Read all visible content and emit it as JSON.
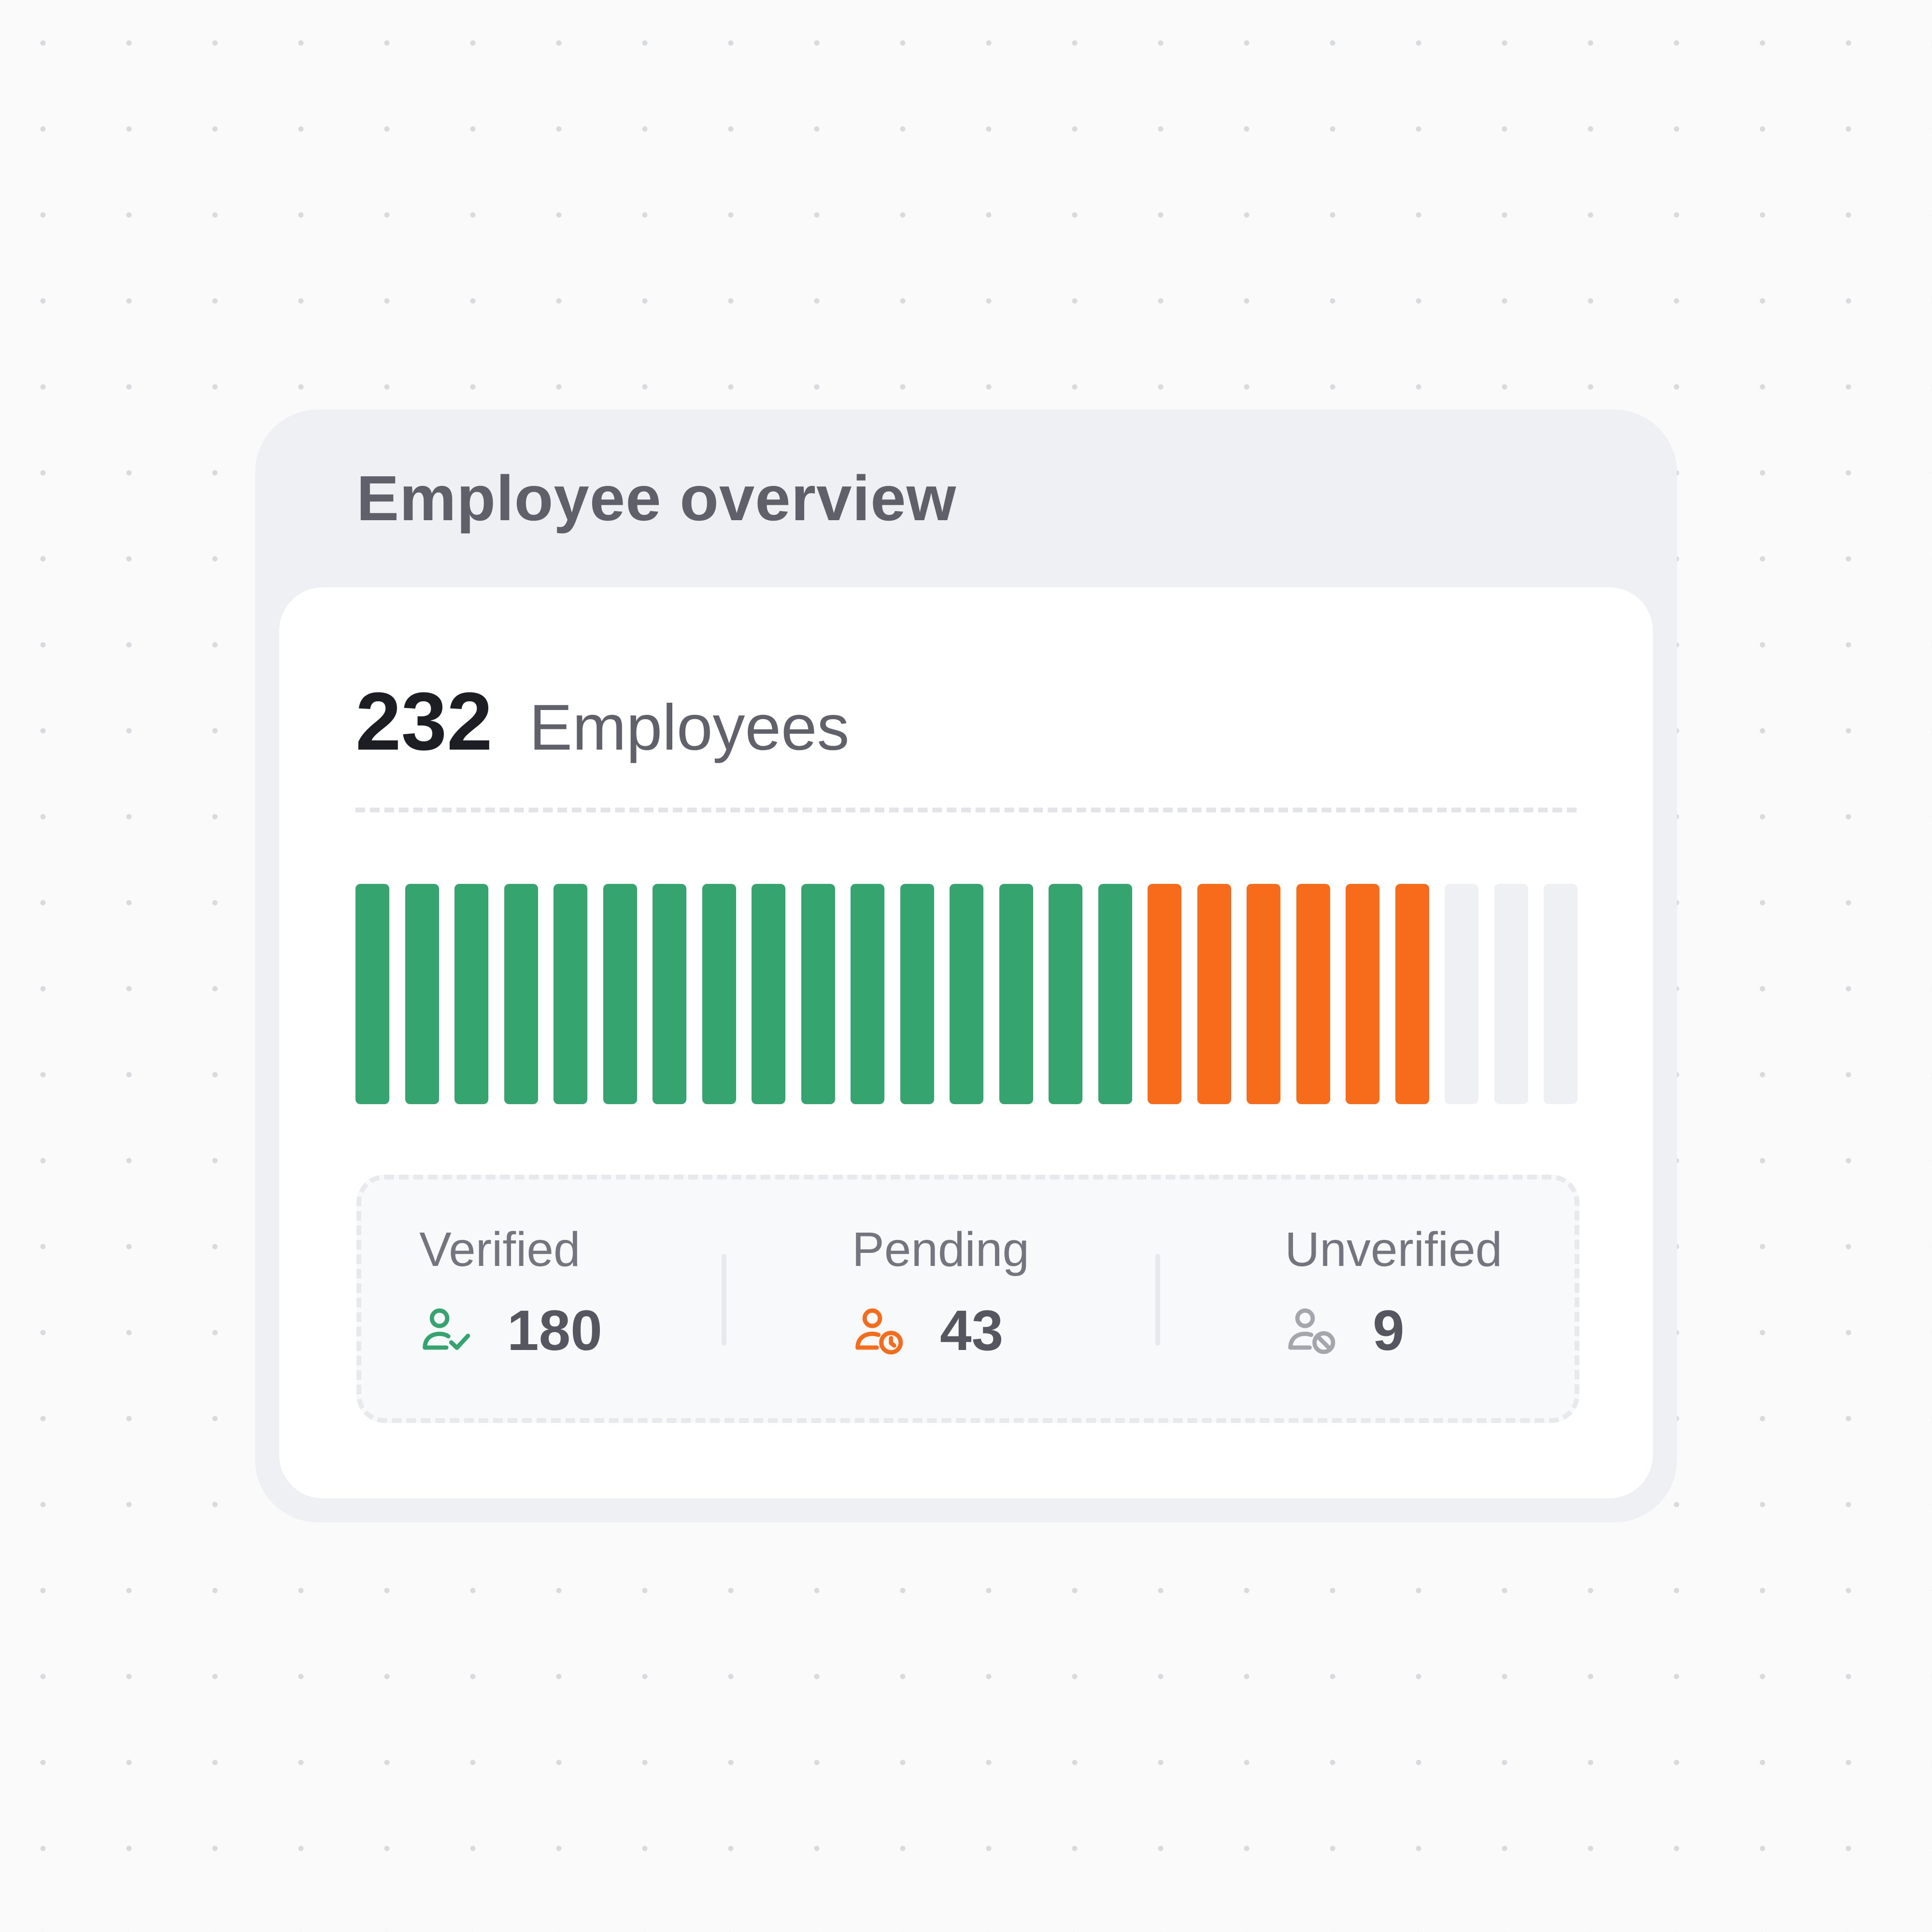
{
  "card": {
    "title": "Employee overview",
    "total": {
      "number": "232",
      "label": "Employees"
    }
  },
  "bars": {
    "total_segments": 25,
    "verified_segments": 16,
    "pending_segments": 6,
    "unverified_segments": 3,
    "colors": {
      "verified": "#35a46e",
      "pending": "#f66c1a",
      "unverified": "#eff0f3"
    }
  },
  "stats": [
    {
      "label": "Verified",
      "value": "180",
      "icon": "user-check-icon",
      "color": "#35a46e"
    },
    {
      "label": "Pending",
      "value": "43",
      "icon": "user-clock-icon",
      "color": "#f66c1a"
    },
    {
      "label": "Unverified",
      "value": "9",
      "icon": "user-blocked-icon",
      "color": "#a4a5ad"
    }
  ]
}
